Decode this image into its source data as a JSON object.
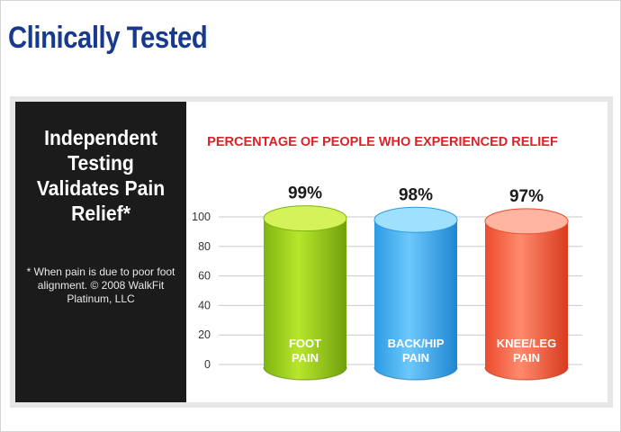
{
  "page": {
    "title": "Clinically Tested"
  },
  "left_panel": {
    "heading": "Independent Testing Validates Pain Relief*",
    "footnote": "* When pain is due to poor foot alignment. © 2008 WalkFit Platinum, LLC"
  },
  "chart_data": {
    "type": "bar",
    "title": "PERCENTAGE OF PEOPLE WHO EXPERIENCED RELIEF",
    "categories": [
      "FOOT PAIN",
      "BACK/HIP PAIN",
      "KNEE/LEG PAIN"
    ],
    "category_lines": [
      [
        "FOOT",
        "PAIN"
      ],
      [
        "BACK/HIP",
        "PAIN"
      ],
      [
        "KNEE/LEG",
        "PAIN"
      ]
    ],
    "values": [
      99,
      98,
      97
    ],
    "value_labels": [
      "99%",
      "98%",
      "97%"
    ],
    "yticks": [
      0,
      20,
      40,
      60,
      80,
      100
    ],
    "ylim": [
      0,
      100
    ],
    "grid": true,
    "colors": [
      {
        "top": "#d6f25a",
        "left": "#7fb512",
        "mid": "#b8e62c",
        "right": "#6fa00c",
        "shadow": "#4f7e06"
      },
      {
        "top": "#9fe0ff",
        "left": "#2c9be2",
        "mid": "#6cc8fb",
        "right": "#1f86d2",
        "shadow": "#176aa9"
      },
      {
        "top": "#ffb5a0",
        "left": "#ec4b2e",
        "mid": "#ff8a6c",
        "right": "#d93a1f",
        "shadow": "#b12d16"
      }
    ],
    "title_color": "#d9232a"
  }
}
